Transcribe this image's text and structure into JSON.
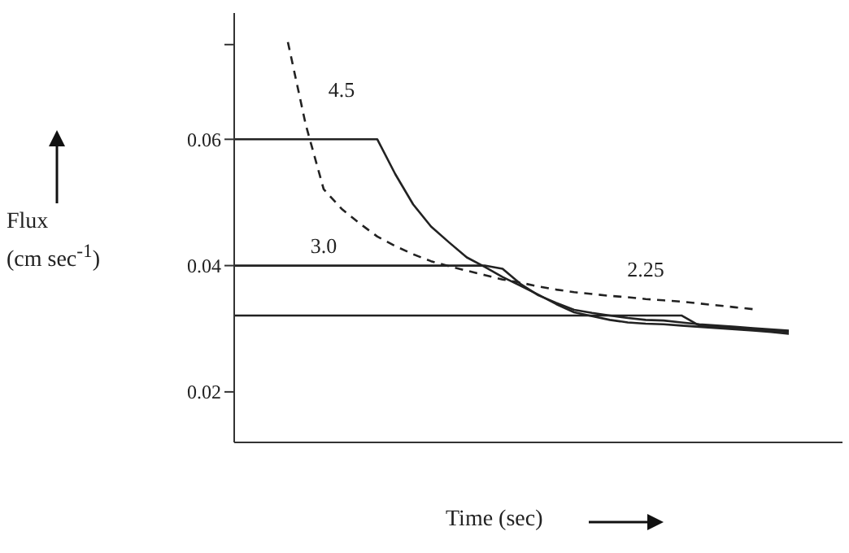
{
  "chart_data": {
    "type": "line",
    "xlabel": "Time (sec)",
    "ylabel": "Flux (cm sec$^{-1}$)",
    "categories": [
      null,
      null,
      null,
      null,
      null,
      null,
      null,
      null,
      null,
      null,
      null,
      null,
      null,
      null,
      null,
      null,
      null,
      null,
      null,
      null,
      null,
      null,
      null,
      null,
      null,
      null,
      null,
      null,
      null,
      null,
      null,
      null,
      null,
      null,
      null
    ],
    "ylim": [
      0.012,
      0.08
    ],
    "yticks": [
      0.02,
      0.04,
      0.06,
      {
        "value": 0.075,
        "label": null
      }
    ],
    "marker": "none",
    "series": [
      {
        "name": "4.5",
        "color": "#222222",
        "line_style": "solid",
        "values": [
          0.06,
          0.06,
          0.06,
          0.06,
          0.06,
          0.06,
          0.06,
          0.06,
          0.06,
          0.0545,
          0.0497,
          0.0462,
          0.0437,
          0.0413,
          0.0398,
          0.0382,
          0.0368,
          0.0354,
          0.0339,
          0.0326,
          0.032,
          0.0314,
          0.031,
          0.0308,
          0.0307,
          0.0305,
          0.0303,
          0.0301,
          0.0299,
          0.0297,
          0.0295,
          0.0292,
          null,
          null,
          null
        ]
      },
      {
        "name": "3.0",
        "color": "#222222",
        "line_style": "solid",
        "values": [
          0.04,
          0.04,
          0.04,
          0.04,
          0.04,
          0.04,
          0.04,
          0.04,
          0.04,
          0.04,
          0.04,
          0.04,
          0.04,
          0.04,
          0.04,
          0.0395,
          0.0371,
          0.0353,
          0.0341,
          0.033,
          0.0325,
          0.0321,
          0.0317,
          0.0314,
          0.0313,
          0.031,
          0.0307,
          0.0305,
          0.0303,
          0.0301,
          0.0299,
          0.0297,
          null,
          null,
          null
        ]
      },
      {
        "name": "2.25",
        "color": "#222222",
        "line_style": "solid",
        "values": [
          0.0321,
          0.0321,
          0.0321,
          0.0321,
          0.0321,
          0.0321,
          0.0321,
          0.0321,
          0.0321,
          0.0321,
          0.0321,
          0.0321,
          0.0321,
          0.0321,
          0.0321,
          0.0321,
          0.0321,
          0.0321,
          0.0321,
          0.0321,
          0.0321,
          0.0321,
          0.0321,
          0.0321,
          0.0321,
          0.0321,
          0.0305,
          0.0303,
          0.0301,
          0.0299,
          0.0297,
          0.0295,
          null,
          null,
          null
        ]
      },
      {
        "color": "#222222",
        "line_style": "dashed",
        "values": [
          null,
          null,
          null,
          0.0754,
          0.0623,
          0.0521,
          0.049,
          0.0467,
          0.0446,
          0.0431,
          0.0418,
          0.0407,
          0.0399,
          0.0392,
          0.0385,
          0.0378,
          0.0373,
          0.0367,
          0.0362,
          0.0358,
          0.0355,
          0.0352,
          0.035,
          0.0347,
          0.0345,
          0.0343,
          0.034,
          0.0337,
          0.0334,
          0.0331,
          null,
          null,
          null,
          null,
          null
        ]
      }
    ]
  }
}
